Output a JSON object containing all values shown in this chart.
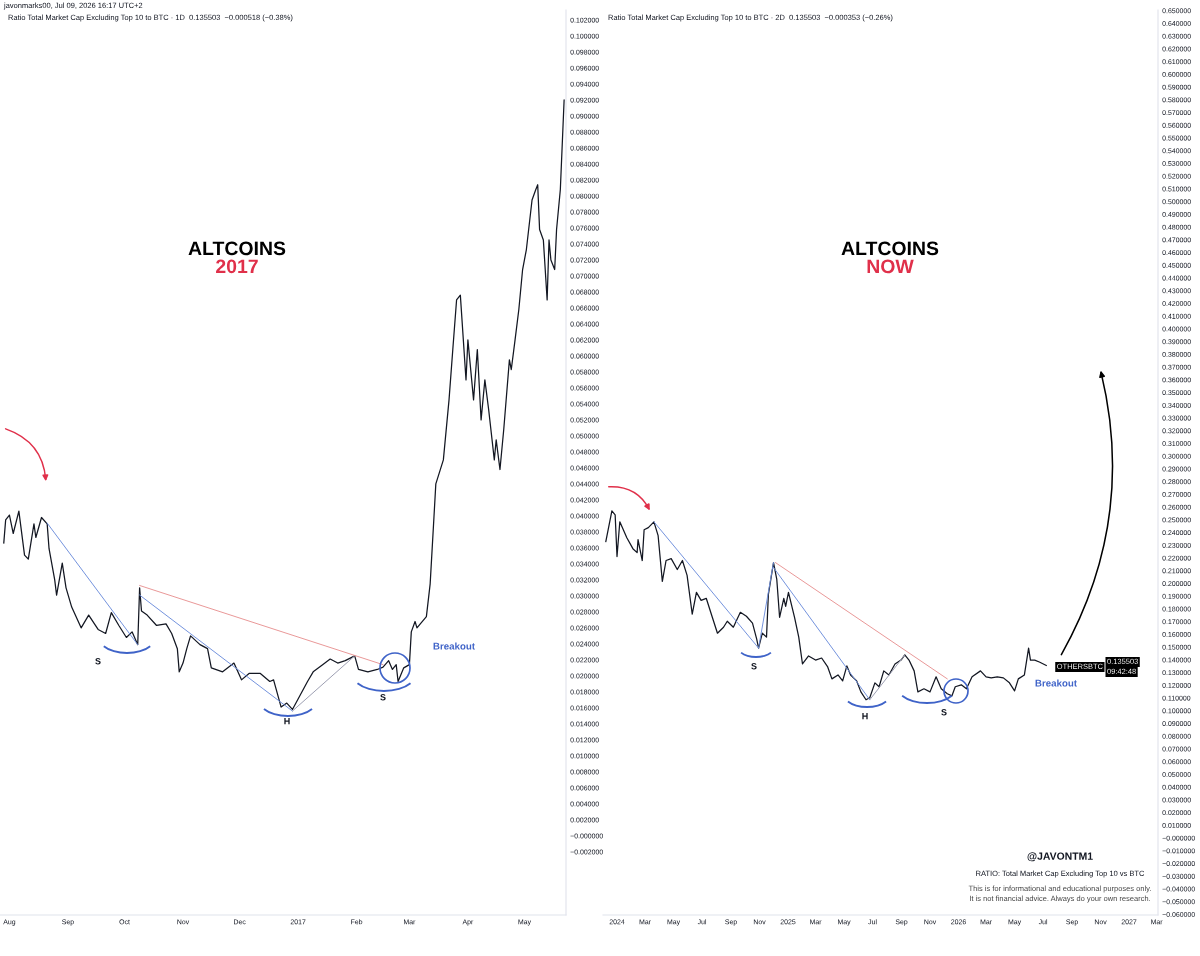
{
  "chart_data": [
    {
      "type": "line",
      "title": "ALTCOINS",
      "subtitle": "2017",
      "annotations": [
        "javonmarks00, Jul 09, 2026 16:17 UTC+2",
        "Ratio Total Market Cap Excluding Top 10 to BTC · 1D  0.135503  −0.000518 (−0.38%)",
        "S",
        "H",
        "S",
        "Breakout"
      ],
      "xlim": [
        "2016-07-27",
        "2017-05-23"
      ],
      "xticks": [
        {
          "value": "2016-08-01",
          "label": "Aug"
        },
        {
          "value": "2016-09-01",
          "label": "Sep"
        },
        {
          "value": "2016-10-01",
          "label": "Oct"
        },
        {
          "value": "2016-11-01",
          "label": "Nov"
        },
        {
          "value": "2016-12-01",
          "label": "Dec"
        },
        {
          "value": "2017-01-01",
          "label": "2017"
        },
        {
          "value": "2017-02-01",
          "label": "Feb"
        },
        {
          "value": "2017-03-01",
          "label": "Mar"
        },
        {
          "value": "2017-04-01",
          "label": "Apr"
        },
        {
          "value": "2017-05-01",
          "label": "May"
        }
      ],
      "ylim": [
        -0.0099,
        0.10325
      ],
      "yticks": [
        {
          "value": 0.102,
          "label": "0.102000"
        },
        {
          "value": 0.1,
          "label": "0.100000"
        },
        {
          "value": 0.098,
          "label": "0.098000"
        },
        {
          "value": 0.096,
          "label": "0.096000"
        },
        {
          "value": 0.094,
          "label": "0.094000"
        },
        {
          "value": 0.092,
          "label": "0.092000"
        },
        {
          "value": 0.09,
          "label": "0.090000"
        },
        {
          "value": 0.088,
          "label": "0.088000"
        },
        {
          "value": 0.086,
          "label": "0.086000"
        },
        {
          "value": 0.084,
          "label": "0.084000"
        },
        {
          "value": 0.082,
          "label": "0.082000"
        },
        {
          "value": 0.08,
          "label": "0.080000"
        },
        {
          "value": 0.078,
          "label": "0.078000"
        },
        {
          "value": 0.076,
          "label": "0.076000"
        },
        {
          "value": 0.074,
          "label": "0.074000"
        },
        {
          "value": 0.072,
          "label": "0.072000"
        },
        {
          "value": 0.07,
          "label": "0.070000"
        },
        {
          "value": 0.068,
          "label": "0.068000"
        },
        {
          "value": 0.066,
          "label": "0.066000"
        },
        {
          "value": 0.064,
          "label": "0.064000"
        },
        {
          "value": 0.062,
          "label": "0.062000"
        },
        {
          "value": 0.06,
          "label": "0.060000"
        },
        {
          "value": 0.058,
          "label": "0.058000"
        },
        {
          "value": 0.056,
          "label": "0.056000"
        },
        {
          "value": 0.054,
          "label": "0.054000"
        },
        {
          "value": 0.052,
          "label": "0.052000"
        },
        {
          "value": 0.05,
          "label": "0.050000"
        },
        {
          "value": 0.048,
          "label": "0.048000"
        },
        {
          "value": 0.046,
          "label": "0.046000"
        },
        {
          "value": 0.044,
          "label": "0.044000"
        },
        {
          "value": 0.042,
          "label": "0.042000"
        },
        {
          "value": 0.04,
          "label": "0.040000"
        },
        {
          "value": 0.038,
          "label": "0.038000"
        },
        {
          "value": 0.036,
          "label": "0.036000"
        },
        {
          "value": 0.034,
          "label": "0.034000"
        },
        {
          "value": 0.032,
          "label": "0.032000"
        },
        {
          "value": 0.03,
          "label": "0.030000"
        },
        {
          "value": 0.028,
          "label": "0.028000"
        },
        {
          "value": 0.026,
          "label": "0.026000"
        },
        {
          "value": 0.024,
          "label": "0.024000"
        },
        {
          "value": 0.022,
          "label": "0.022000"
        },
        {
          "value": 0.02,
          "label": "0.020000"
        },
        {
          "value": 0.018,
          "label": "0.018000"
        },
        {
          "value": 0.016,
          "label": "0.016000"
        },
        {
          "value": 0.014,
          "label": "0.014000"
        },
        {
          "value": 0.012,
          "label": "0.012000"
        },
        {
          "value": 0.01,
          "label": "0.010000"
        },
        {
          "value": 0.008,
          "label": "0.008000"
        },
        {
          "value": 0.006,
          "label": "0.006000"
        },
        {
          "value": 0.004,
          "label": "0.004000"
        },
        {
          "value": 0.002,
          "label": "0.002000"
        },
        {
          "value": 0,
          "label": "−0.000000"
        },
        {
          "value": -0.002,
          "label": "−0.002000"
        }
      ],
      "series": [
        {
          "color": "#131722",
          "x": [
            "2016-07-29",
            "2016-07-30",
            "2016-08-01",
            "2016-08-03",
            "2016-08-06",
            "2016-08-09",
            "2016-08-11",
            "2016-08-14",
            "2016-08-15",
            "2016-08-18",
            "2016-08-21",
            "2016-08-22",
            "2016-08-25",
            "2016-08-26",
            "2016-08-29",
            "2016-08-31",
            "2016-09-03",
            "2016-09-08",
            "2016-09-12",
            "2016-09-17",
            "2016-09-21",
            "2016-09-24",
            "2016-09-28",
            "2016-10-02",
            "2016-10-05",
            "2016-10-08",
            "2016-10-09",
            "2016-10-10",
            "2016-10-13",
            "2016-10-18",
            "2016-10-23",
            "2016-10-26",
            "2016-10-29",
            "2016-10-30",
            "2016-11-01",
            "2016-11-03",
            "2016-11-05",
            "2016-11-10",
            "2016-11-14",
            "2016-11-16",
            "2016-11-22",
            "2016-11-28",
            "2016-12-02",
            "2016-12-06",
            "2016-12-12",
            "2016-12-17",
            "2016-12-19",
            "2016-12-23",
            "2016-12-26",
            "2016-12-29",
            "2017-01-01",
            "2017-01-06",
            "2017-01-09",
            "2017-01-14",
            "2017-01-18",
            "2017-01-22",
            "2017-01-26",
            "2017-01-31",
            "2017-02-02",
            "2017-02-07",
            "2017-02-12",
            "2017-02-15",
            "2017-02-18",
            "2017-02-20",
            "2017-02-22",
            "2017-02-23",
            "2017-02-26",
            "2017-03-01",
            "2017-03-02",
            "2017-03-04",
            "2017-03-05",
            "2017-03-10",
            "2017-03-12",
            "2017-03-14",
            "2017-03-15",
            "2017-03-19",
            "2017-03-22",
            "2017-03-24",
            "2017-03-26",
            "2017-03-28",
            "2017-03-31",
            "2017-04-01",
            "2017-04-04",
            "2017-04-06",
            "2017-04-08",
            "2017-04-10",
            "2017-04-12",
            "2017-04-15",
            "2017-04-16",
            "2017-04-18",
            "2017-04-20",
            "2017-04-23",
            "2017-04-24",
            "2017-04-26",
            "2017-04-28",
            "2017-04-30",
            "2017-05-02",
            "2017-05-05",
            "2017-05-07",
            "2017-05-08",
            "2017-05-09",
            "2017-05-11",
            "2017-05-13",
            "2017-05-14",
            "2017-05-15",
            "2017-05-17",
            "2017-05-18",
            "2017-05-20",
            "2017-05-22"
          ],
          "values": [
            0.0366,
            0.0395,
            0.0401,
            0.0378,
            0.0406,
            0.0351,
            0.0346,
            0.039,
            0.0373,
            0.0398,
            0.039,
            0.0359,
            0.032,
            0.0301,
            0.0341,
            0.031,
            0.0286,
            0.026,
            0.0276,
            0.0258,
            0.0253,
            0.0279,
            0.0263,
            0.0248,
            0.0255,
            0.0239,
            0.031,
            0.0281,
            0.0276,
            0.0263,
            0.0265,
            0.0253,
            0.0234,
            0.0205,
            0.0216,
            0.0234,
            0.025,
            0.0239,
            0.0234,
            0.021,
            0.0205,
            0.0216,
            0.0195,
            0.0203,
            0.0203,
            0.0193,
            0.0195,
            0.0161,
            0.0166,
            0.0158,
            0.0171,
            0.0193,
            0.0205,
            0.0214,
            0.0221,
            0.0216,
            0.0219,
            0.0225,
            0.0208,
            0.0205,
            0.0208,
            0.0211,
            0.0219,
            0.0208,
            0.0214,
            0.0193,
            0.021,
            0.0214,
            0.0255,
            0.0268,
            0.026,
            0.0274,
            0.0315,
            0.0398,
            0.044,
            0.047,
            0.0545,
            0.0608,
            0.067,
            0.0676,
            0.057,
            0.062,
            0.0545,
            0.0608,
            0.052,
            0.057,
            0.0533,
            0.047,
            0.0495,
            0.0458,
            0.0508,
            0.0595,
            0.0583,
            0.062,
            0.0658,
            0.0708,
            0.0733,
            0.0795,
            0.0808,
            0.0814,
            0.0758,
            0.0745,
            0.067,
            0.0745,
            0.072,
            0.0708,
            0.0758,
            0.0808,
            0.092
          ]
        },
        {
          "color": "#6f8fdc",
          "x": [
            "2016-08-21",
            "2016-10-08"
          ],
          "values": [
            0.0391,
            0.0239
          ]
        },
        {
          "color": "#6f8fdc",
          "x": [
            "2016-10-09",
            "2016-12-29"
          ],
          "values": [
            0.0301,
            0.0156
          ]
        },
        {
          "color": "#9a9cb0",
          "x": [
            "2016-12-29",
            "2017-01-31"
          ],
          "values": [
            0.0156,
            0.0225
          ]
        },
        {
          "color": "#e89595",
          "x": [
            "2016-10-09",
            "2017-02-15"
          ],
          "values": [
            0.0313,
            0.0214
          ]
        }
      ]
    },
    {
      "type": "line",
      "title": "ALTCOINS",
      "subtitle": "NOW",
      "annotations": [
        "Ratio Total Market Cap Excluding Top 10 to BTC · 2D  0.135503  −0.000353 (−0.26%)",
        "@JAVONTM1",
        "RATIO: Total Market Cap Excluding Top 10 vs BTC",
        "This is for informational and educational purposes only.",
        "It is not financial advice. Always do your own research.",
        "OTHERSBTC",
        "0.135503",
        "09:42:48",
        "S",
        "H",
        "S",
        "Breakout"
      ],
      "xlim": [
        "2023-12-02",
        "2027-03-04"
      ],
      "xticks": [
        {
          "value": "2024-01-01",
          "label": "2024"
        },
        {
          "value": "2024-03-01",
          "label": "Mar"
        },
        {
          "value": "2024-05-01",
          "label": "May"
        },
        {
          "value": "2024-07-01",
          "label": "Jul"
        },
        {
          "value": "2024-09-01",
          "label": "Sep"
        },
        {
          "value": "2024-11-01",
          "label": "Nov"
        },
        {
          "value": "2025-01-01",
          "label": "2025"
        },
        {
          "value": "2025-03-01",
          "label": "Mar"
        },
        {
          "value": "2025-05-01",
          "label": "May"
        },
        {
          "value": "2025-07-01",
          "label": "Jul"
        },
        {
          "value": "2025-09-01",
          "label": "Sep"
        },
        {
          "value": "2025-11-01",
          "label": "Nov"
        },
        {
          "value": "2026-01-01",
          "label": "2026"
        },
        {
          "value": "2026-03-01",
          "label": "Mar"
        },
        {
          "value": "2026-05-01",
          "label": "May"
        },
        {
          "value": "2026-07-01",
          "label": "Jul"
        },
        {
          "value": "2026-09-01",
          "label": "Sep"
        },
        {
          "value": "2026-11-01",
          "label": "Nov"
        },
        {
          "value": "2027-01-01",
          "label": "2027"
        },
        {
          "value": "2027-03-01",
          "label": "Mar"
        }
      ],
      "ylim": [
        -0.0605,
        0.6505
      ],
      "yticks": [
        {
          "value": 0.65,
          "label": "0.650000"
        },
        {
          "value": 0.64,
          "label": "0.640000"
        },
        {
          "value": 0.63,
          "label": "0.630000"
        },
        {
          "value": 0.62,
          "label": "0.620000"
        },
        {
          "value": 0.61,
          "label": "0.610000"
        },
        {
          "value": 0.6,
          "label": "0.600000"
        },
        {
          "value": 0.59,
          "label": "0.590000"
        },
        {
          "value": 0.58,
          "label": "0.580000"
        },
        {
          "value": 0.57,
          "label": "0.570000"
        },
        {
          "value": 0.56,
          "label": "0.560000"
        },
        {
          "value": 0.55,
          "label": "0.550000"
        },
        {
          "value": 0.54,
          "label": "0.540000"
        },
        {
          "value": 0.53,
          "label": "0.530000"
        },
        {
          "value": 0.52,
          "label": "0.520000"
        },
        {
          "value": 0.51,
          "label": "0.510000"
        },
        {
          "value": 0.5,
          "label": "0.500000"
        },
        {
          "value": 0.49,
          "label": "0.490000"
        },
        {
          "value": 0.48,
          "label": "0.480000"
        },
        {
          "value": 0.47,
          "label": "0.470000"
        },
        {
          "value": 0.46,
          "label": "0.460000"
        },
        {
          "value": 0.45,
          "label": "0.450000"
        },
        {
          "value": 0.44,
          "label": "0.440000"
        },
        {
          "value": 0.43,
          "label": "0.430000"
        },
        {
          "value": 0.42,
          "label": "0.420000"
        },
        {
          "value": 0.41,
          "label": "0.410000"
        },
        {
          "value": 0.4,
          "label": "0.400000"
        },
        {
          "value": 0.39,
          "label": "0.390000"
        },
        {
          "value": 0.38,
          "label": "0.380000"
        },
        {
          "value": 0.37,
          "label": "0.370000"
        },
        {
          "value": 0.36,
          "label": "0.360000"
        },
        {
          "value": 0.35,
          "label": "0.350000"
        },
        {
          "value": 0.34,
          "label": "0.340000"
        },
        {
          "value": 0.33,
          "label": "0.330000"
        },
        {
          "value": 0.32,
          "label": "0.320000"
        },
        {
          "value": 0.31,
          "label": "0.310000"
        },
        {
          "value": 0.3,
          "label": "0.300000"
        },
        {
          "value": 0.29,
          "label": "0.290000"
        },
        {
          "value": 0.28,
          "label": "0.280000"
        },
        {
          "value": 0.27,
          "label": "0.270000"
        },
        {
          "value": 0.26,
          "label": "0.260000"
        },
        {
          "value": 0.25,
          "label": "0.250000"
        },
        {
          "value": 0.24,
          "label": "0.240000"
        },
        {
          "value": 0.23,
          "label": "0.230000"
        },
        {
          "value": 0.22,
          "label": "0.220000"
        },
        {
          "value": 0.21,
          "label": "0.210000"
        },
        {
          "value": 0.2,
          "label": "0.200000"
        },
        {
          "value": 0.19,
          "label": "0.190000"
        },
        {
          "value": 0.18,
          "label": "0.180000"
        },
        {
          "value": 0.17,
          "label": "0.170000"
        },
        {
          "value": 0.16,
          "label": "0.160000"
        },
        {
          "value": 0.15,
          "label": "0.150000"
        },
        {
          "value": 0.14,
          "label": "0.140000"
        },
        {
          "value": 0.13,
          "label": "0.130000"
        },
        {
          "value": 0.12,
          "label": "0.120000"
        },
        {
          "value": 0.11,
          "label": "0.110000"
        },
        {
          "value": 0.1,
          "label": "0.100000"
        },
        {
          "value": 0.09,
          "label": "0.090000"
        },
        {
          "value": 0.08,
          "label": "0.080000"
        },
        {
          "value": 0.07,
          "label": "0.070000"
        },
        {
          "value": 0.06,
          "label": "0.060000"
        },
        {
          "value": 0.05,
          "label": "0.050000"
        },
        {
          "value": 0.04,
          "label": "0.040000"
        },
        {
          "value": 0.03,
          "label": "0.030000"
        },
        {
          "value": 0.02,
          "label": "0.020000"
        },
        {
          "value": 0.01,
          "label": "0.010000"
        },
        {
          "value": 0,
          "label": "−0.000000"
        },
        {
          "value": -0.01,
          "label": "−0.010000"
        },
        {
          "value": -0.02,
          "label": "−0.020000"
        },
        {
          "value": -0.03,
          "label": "−0.030000"
        },
        {
          "value": -0.04,
          "label": "−0.040000"
        },
        {
          "value": -0.05,
          "label": "−0.050000"
        },
        {
          "value": -0.06,
          "label": "−0.060000"
        }
      ],
      "series": [
        {
          "color": "#131722",
          "x": [
            "2023-12-08",
            "2023-12-21",
            "2023-12-28",
            "2024-01-01",
            "2024-01-07",
            "2024-01-22",
            "2024-02-04",
            "2024-02-13",
            "2024-02-15",
            "2024-02-24",
            "2024-02-28",
            "2024-03-08",
            "2024-03-20",
            "2024-03-29",
            "2024-04-07",
            "2024-04-15",
            "2024-04-26",
            "2024-05-09",
            "2024-05-20",
            "2024-05-30",
            "2024-06-10",
            "2024-06-19",
            "2024-06-29",
            "2024-07-10",
            "2024-07-23",
            "2024-08-03",
            "2024-08-16",
            "2024-08-24",
            "2024-09-06",
            "2024-09-21",
            "2024-10-04",
            "2024-10-17",
            "2024-10-26",
            "2024-10-30",
            "2024-11-07",
            "2024-11-16",
            "2024-11-20",
            "2024-12-01",
            "2024-12-08",
            "2024-12-14",
            "2024-12-23",
            "2024-12-27",
            "2025-01-02",
            "2025-01-15",
            "2025-01-24",
            "2025-02-01",
            "2025-02-14",
            "2025-03-01",
            "2025-03-14",
            "2025-03-27",
            "2025-04-05",
            "2025-04-18",
            "2025-04-28",
            "2025-05-07",
            "2025-05-15",
            "2025-05-28",
            "2025-06-06",
            "2025-06-17",
            "2025-06-25",
            "2025-07-06",
            "2025-07-15",
            "2025-07-25",
            "2025-08-05",
            "2025-08-18",
            "2025-08-31",
            "2025-09-08",
            "2025-09-17",
            "2025-09-28",
            "2025-10-06",
            "2025-10-19",
            "2025-11-01",
            "2025-11-14",
            "2025-11-25",
            "2025-12-08",
            "2025-12-18",
            "2025-12-25",
            "2026-01-07",
            "2026-01-18",
            "2026-01-30",
            "2026-02-17",
            "2026-03-01",
            "2026-03-12",
            "2026-03-25",
            "2026-04-07",
            "2026-04-20",
            "2026-05-01",
            "2026-05-09",
            "2026-05-22",
            "2026-05-31",
            "2026-06-04",
            "2026-06-13",
            "2026-06-23",
            "2026-07-08"
          ],
          "values": [
            0.2328,
            0.257,
            0.2539,
            0.2211,
            0.2484,
            0.2359,
            0.2273,
            0.2242,
            0.2344,
            0.218,
            0.2422,
            0.2438,
            0.2484,
            0.2375,
            0.2016,
            0.218,
            0.2195,
            0.2109,
            0.218,
            0.2063,
            0.1758,
            0.193,
            0.1867,
            0.1883,
            0.1734,
            0.1609,
            0.1656,
            0.1703,
            0.1656,
            0.1773,
            0.1742,
            0.1688,
            0.1563,
            0.1492,
            0.1609,
            0.1578,
            0.1914,
            0.2164,
            0.2031,
            0.1734,
            0.1883,
            0.182,
            0.193,
            0.1734,
            0.1578,
            0.1367,
            0.143,
            0.1398,
            0.1414,
            0.1344,
            0.125,
            0.1281,
            0.1234,
            0.1352,
            0.1281,
            0.1234,
            0.1148,
            0.1086,
            0.1102,
            0.1219,
            0.1188,
            0.1313,
            0.1281,
            0.1367,
            0.1398,
            0.1438,
            0.1398,
            0.1313,
            0.1148,
            0.1172,
            0.1148,
            0.1266,
            0.1172,
            0.1133,
            0.1117,
            0.1188,
            0.1203,
            0.1172,
            0.1266,
            0.1313,
            0.1266,
            0.1258,
            0.1266,
            0.1258,
            0.1219,
            0.1156,
            0.125,
            0.1281,
            0.1492,
            0.1398,
            0.1398,
            0.1383,
            0.1355
          ]
        },
        {
          "color": "#6f8fdc",
          "x": [
            "2024-03-20",
            "2024-10-30"
          ],
          "values": [
            0.2484,
            0.1492
          ]
        },
        {
          "color": "#6f8fdc",
          "x": [
            "2024-10-30",
            "2024-12-01"
          ],
          "values": [
            0.1492,
            0.2164
          ]
        },
        {
          "color": "#6f8fdc",
          "x": [
            "2024-12-01",
            "2025-06-25"
          ],
          "values": [
            0.2125,
            0.1086
          ]
        },
        {
          "color": "#9a9cb0",
          "x": [
            "2025-06-25",
            "2025-09-08"
          ],
          "values": [
            0.1086,
            0.1438
          ]
        },
        {
          "color": "#e89595",
          "x": [
            "2024-12-05",
            "2025-12-08"
          ],
          "values": [
            0.2164,
            0.125
          ]
        }
      ]
    }
  ]
}
